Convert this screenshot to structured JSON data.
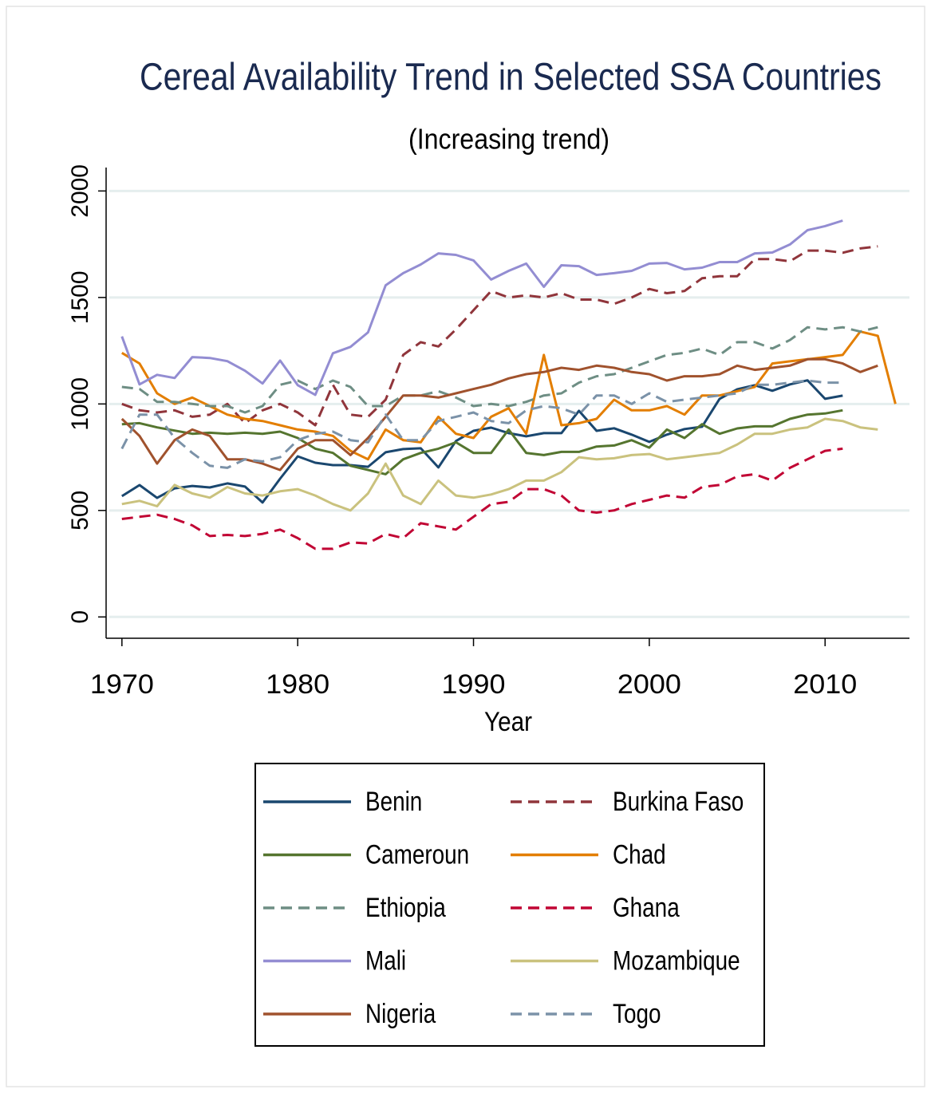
{
  "chart_data": {
    "type": "line",
    "title": "Cereal Availability Trend in Selected SSA Countries",
    "subtitle": "(Increasing trend)",
    "x_label": "Year",
    "x": [
      1970,
      1971,
      1972,
      1973,
      1974,
      1975,
      1976,
      1977,
      1978,
      1979,
      1980,
      1981,
      1982,
      1983,
      1984,
      1985,
      1986,
      1987,
      1988,
      1989,
      1990,
      1991,
      1992,
      1993,
      1994,
      1995,
      1996,
      1997,
      1998,
      1999,
      2000,
      2001,
      2002,
      2003,
      2004,
      2005,
      2006,
      2007,
      2008,
      2009,
      2010,
      2011,
      2012,
      2013,
      2014
    ],
    "xlim": [
      1969.1,
      2014.8
    ],
    "xticks": [
      1970,
      1980,
      1990,
      2000,
      2010
    ],
    "ylim": [
      -100,
      2110
    ],
    "yticks": [
      0,
      500,
      1000,
      1500,
      2000
    ],
    "grid": true,
    "series": [
      {
        "name": "Benin",
        "color": "#1a476f",
        "style": "solid",
        "values": [
          567,
          619,
          559,
          604,
          615,
          608,
          627,
          612,
          537,
          649,
          754,
          724,
          713,
          713,
          705,
          773,
          788,
          792,
          702,
          826,
          874,
          889,
          863,
          848,
          863,
          863,
          968,
          874,
          886,
          856,
          822,
          856,
          882,
          893,
          1024,
          1069,
          1088,
          1062,
          1092,
          1111,
          1024,
          1039,
          null,
          null,
          null
        ]
      },
      {
        "name": "Burkina Faso",
        "color": "#90353b",
        "style": "dashed",
        "values": [
          1000,
          970,
          960,
          970,
          940,
          950,
          1000,
          910,
          970,
          1000,
          960,
          900,
          1090,
          950,
          940,
          1020,
          1230,
          1290,
          1270,
          1350,
          1440,
          1530,
          1500,
          1510,
          1500,
          1520,
          1490,
          1490,
          1470,
          1500,
          1540,
          1520,
          1530,
          1590,
          1600,
          1600,
          1680,
          1680,
          1670,
          1720,
          1720,
          1710,
          1730,
          1740,
          null
        ]
      },
      {
        "name": "Cameroun",
        "color": "#55752f",
        "style": "solid",
        "values": [
          905,
          910,
          890,
          875,
          860,
          865,
          860,
          865,
          860,
          870,
          840,
          790,
          770,
          710,
          690,
          670,
          740,
          770,
          790,
          820,
          770,
          770,
          880,
          770,
          760,
          775,
          775,
          800,
          805,
          830,
          795,
          880,
          840,
          905,
          860,
          885,
          895,
          895,
          930,
          950,
          955,
          970,
          null,
          null,
          null
        ]
      },
      {
        "name": "Chad",
        "color": "#e37e00",
        "style": "solid",
        "values": [
          1240,
          1190,
          1050,
          1000,
          1030,
          990,
          950,
          930,
          920,
          900,
          880,
          870,
          850,
          780,
          740,
          880,
          830,
          820,
          940,
          860,
          840,
          940,
          980,
          860,
          1230,
          900,
          910,
          930,
          1020,
          970,
          970,
          990,
          950,
          1040,
          1040,
          1060,
          1080,
          1190,
          1200,
          1210,
          1220,
          1230,
          1340,
          1320,
          1000
        ]
      },
      {
        "name": "Ethiopia",
        "color": "#6e8e84",
        "style": "dashed",
        "values": [
          1080,
          1070,
          1010,
          1010,
          1000,
          990,
          990,
          960,
          990,
          1090,
          1110,
          1070,
          1110,
          1080,
          990,
          990,
          1040,
          1040,
          1060,
          1030,
          990,
          1000,
          990,
          1010,
          1040,
          1050,
          1100,
          1130,
          1140,
          1170,
          1200,
          1230,
          1240,
          1260,
          1230,
          1290,
          1290,
          1260,
          1300,
          1360,
          1350,
          1360,
          1340,
          1360,
          null
        ]
      },
      {
        "name": "Ghana",
        "color": "#c10534",
        "style": "dashed",
        "values": [
          460,
          470,
          480,
          460,
          430,
          380,
          385,
          380,
          390,
          410,
          370,
          320,
          320,
          350,
          345,
          390,
          370,
          440,
          425,
          410,
          470,
          530,
          540,
          600,
          600,
          570,
          500,
          490,
          500,
          530,
          550,
          570,
          560,
          610,
          620,
          660,
          670,
          640,
          700,
          740,
          780,
          790,
          null,
          null,
          null
        ]
      },
      {
        "name": "Mali",
        "color": "#938dd2",
        "style": "solid",
        "values": [
          1317,
          1092,
          1137,
          1122,
          1220,
          1216,
          1201,
          1156,
          1096,
          1204,
          1088,
          1043,
          1238,
          1268,
          1336,
          1557,
          1614,
          1655,
          1707,
          1700,
          1674,
          1584,
          1625,
          1659,
          1550,
          1651,
          1647,
          1606,
          1614,
          1625,
          1659,
          1662,
          1632,
          1640,
          1666,
          1666,
          1707,
          1711,
          1749,
          1816,
          1835,
          1861,
          null,
          null,
          null
        ]
      },
      {
        "name": "Mozambique",
        "color": "#cac27e",
        "style": "solid",
        "values": [
          530,
          545,
          520,
          620,
          580,
          560,
          610,
          580,
          570,
          590,
          600,
          570,
          530,
          500,
          580,
          720,
          570,
          530,
          640,
          570,
          560,
          575,
          600,
          640,
          640,
          680,
          750,
          740,
          745,
          760,
          765,
          740,
          750,
          760,
          770,
          810,
          860,
          860,
          880,
          890,
          930,
          920,
          890,
          880,
          null
        ]
      },
      {
        "name": "Nigeria",
        "color": "#a0522d",
        "style": "solid",
        "values": [
          930,
          850,
          720,
          830,
          880,
          850,
          740,
          740,
          720,
          690,
          790,
          830,
          830,
          760,
          840,
          940,
          1040,
          1040,
          1030,
          1050,
          1070,
          1090,
          1120,
          1140,
          1150,
          1170,
          1160,
          1180,
          1170,
          1150,
          1140,
          1110,
          1130,
          1130,
          1140,
          1180,
          1160,
          1170,
          1180,
          1210,
          1210,
          1190,
          1150,
          1180,
          null
        ]
      },
      {
        "name": "Togo",
        "color": "#7b92a8",
        "style": "dashed",
        "values": [
          790,
          950,
          950,
          840,
          770,
          710,
          700,
          740,
          730,
          750,
          830,
          860,
          870,
          830,
          820,
          950,
          830,
          830,
          920,
          940,
          960,
          920,
          910,
          970,
          990,
          980,
          950,
          1040,
          1040,
          1000,
          1050,
          1010,
          1020,
          1030,
          1040,
          1050,
          1090,
          1090,
          1100,
          1110,
          1100,
          1100,
          null,
          null,
          null
        ]
      }
    ]
  }
}
